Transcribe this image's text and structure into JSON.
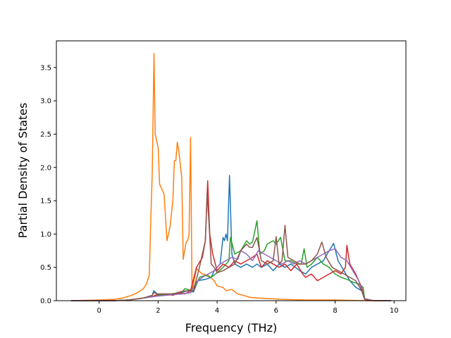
{
  "chart_data": {
    "type": "line",
    "title": "",
    "xlabel": "Frequency (THz)",
    "ylabel": "Partial Density of States",
    "xlim": [
      -1.45,
      10.4
    ],
    "ylim": [
      0,
      3.9
    ],
    "xticks": [
      0,
      2,
      4,
      6,
      8,
      10
    ],
    "yticks": [
      0.0,
      0.5,
      1.0,
      1.5,
      2.0,
      2.5,
      3.0,
      3.5
    ],
    "xtick_labels": [
      "0",
      "2",
      "4",
      "6",
      "8",
      "10"
    ],
    "ytick_labels": [
      "0.0",
      "0.5",
      "1.0",
      "1.5",
      "2.0",
      "2.5",
      "3.0",
      "3.5"
    ],
    "grid": false,
    "legend": "none",
    "series": [
      {
        "color": "#1f77b4",
        "points": [
          [
            -0.95,
            0
          ],
          [
            0.5,
            0
          ],
          [
            1.0,
            0.01
          ],
          [
            1.5,
            0.04
          ],
          [
            1.8,
            0.08
          ],
          [
            1.85,
            0.15
          ],
          [
            2.0,
            0.09
          ],
          [
            2.4,
            0.1
          ],
          [
            2.8,
            0.12
          ],
          [
            3.0,
            0.15
          ],
          [
            3.2,
            0.13
          ],
          [
            3.35,
            0.3
          ],
          [
            3.6,
            0.32
          ],
          [
            3.8,
            0.35
          ],
          [
            3.9,
            0.45
          ],
          [
            4.0,
            0.5
          ],
          [
            4.1,
            0.55
          ],
          [
            4.15,
            0.75
          ],
          [
            4.2,
            0.95
          ],
          [
            4.25,
            0.9
          ],
          [
            4.3,
            1.0
          ],
          [
            4.35,
            0.9
          ],
          [
            4.42,
            1.88
          ],
          [
            4.5,
            0.7
          ],
          [
            4.6,
            0.55
          ],
          [
            4.8,
            0.5
          ],
          [
            5.0,
            0.55
          ],
          [
            5.2,
            0.5
          ],
          [
            5.35,
            0.55
          ],
          [
            5.5,
            0.5
          ],
          [
            5.7,
            0.55
          ],
          [
            5.9,
            0.45
          ],
          [
            6.1,
            0.55
          ],
          [
            6.3,
            0.5
          ],
          [
            6.5,
            0.55
          ],
          [
            6.8,
            0.45
          ],
          [
            7.0,
            0.4
          ],
          [
            7.2,
            0.5
          ],
          [
            7.4,
            0.55
          ],
          [
            7.6,
            0.6
          ],
          [
            7.8,
            0.75
          ],
          [
            7.95,
            0.86
          ],
          [
            8.1,
            0.6
          ],
          [
            8.3,
            0.45
          ],
          [
            8.5,
            0.3
          ],
          [
            8.7,
            0.2
          ],
          [
            8.9,
            0.15
          ],
          [
            9.0,
            0.02
          ],
          [
            9.3,
            0
          ],
          [
            9.9,
            0
          ]
        ]
      },
      {
        "color": "#ff7f0e",
        "points": [
          [
            -0.95,
            0
          ],
          [
            0.0,
            0.01
          ],
          [
            0.5,
            0.02
          ],
          [
            0.8,
            0.04
          ],
          [
            1.1,
            0.08
          ],
          [
            1.3,
            0.12
          ],
          [
            1.5,
            0.18
          ],
          [
            1.6,
            0.25
          ],
          [
            1.7,
            0.38
          ],
          [
            1.75,
            1.2
          ],
          [
            1.8,
            1.9
          ],
          [
            1.86,
            3.71
          ],
          [
            1.9,
            2.5
          ],
          [
            2.0,
            2.3
          ],
          [
            2.05,
            1.75
          ],
          [
            2.15,
            1.65
          ],
          [
            2.2,
            1.6
          ],
          [
            2.3,
            0.9
          ],
          [
            2.4,
            1.1
          ],
          [
            2.5,
            1.5
          ],
          [
            2.55,
            2.1
          ],
          [
            2.6,
            2.1
          ],
          [
            2.65,
            2.38
          ],
          [
            2.7,
            2.25
          ],
          [
            2.8,
            1.85
          ],
          [
            2.85,
            0.62
          ],
          [
            2.95,
            0.88
          ],
          [
            3.0,
            0.9
          ],
          [
            3.05,
            1.0
          ],
          [
            3.1,
            2.45
          ],
          [
            3.15,
            0.15
          ],
          [
            3.3,
            0.48
          ],
          [
            3.5,
            0.4
          ],
          [
            3.7,
            0.38
          ],
          [
            3.9,
            0.3
          ],
          [
            4.0,
            0.22
          ],
          [
            4.2,
            0.2
          ],
          [
            4.3,
            0.15
          ],
          [
            4.5,
            0.17
          ],
          [
            4.7,
            0.1
          ],
          [
            4.9,
            0.08
          ],
          [
            5.1,
            0.05
          ],
          [
            5.4,
            0.04
          ],
          [
            5.8,
            0.03
          ],
          [
            6.2,
            0.02
          ],
          [
            7.0,
            0.01
          ],
          [
            8.0,
            0.01
          ],
          [
            9.0,
            0
          ],
          [
            9.9,
            0
          ]
        ]
      },
      {
        "color": "#2ca02c",
        "points": [
          [
            -0.95,
            0
          ],
          [
            0.5,
            0
          ],
          [
            1.0,
            0.01
          ],
          [
            1.5,
            0.04
          ],
          [
            2.0,
            0.08
          ],
          [
            2.4,
            0.1
          ],
          [
            2.8,
            0.12
          ],
          [
            2.9,
            0.18
          ],
          [
            3.2,
            0.15
          ],
          [
            3.4,
            0.35
          ],
          [
            3.6,
            0.38
          ],
          [
            3.8,
            0.35
          ],
          [
            4.0,
            0.42
          ],
          [
            4.2,
            0.5
          ],
          [
            4.4,
            0.6
          ],
          [
            4.45,
            0.95
          ],
          [
            4.6,
            0.7
          ],
          [
            4.8,
            0.75
          ],
          [
            5.0,
            0.9
          ],
          [
            5.1,
            0.85
          ],
          [
            5.2,
            0.88
          ],
          [
            5.35,
            1.2
          ],
          [
            5.45,
            0.7
          ],
          [
            5.6,
            0.75
          ],
          [
            5.7,
            0.85
          ],
          [
            5.9,
            0.9
          ],
          [
            6.0,
            0.85
          ],
          [
            6.15,
            0.95
          ],
          [
            6.3,
            0.6
          ],
          [
            6.5,
            0.6
          ],
          [
            6.7,
            0.55
          ],
          [
            6.85,
            0.55
          ],
          [
            6.95,
            0.78
          ],
          [
            7.05,
            0.5
          ],
          [
            7.2,
            0.55
          ],
          [
            7.4,
            0.65
          ],
          [
            7.6,
            0.55
          ],
          [
            7.8,
            0.5
          ],
          [
            8.0,
            0.4
          ],
          [
            8.2,
            0.35
          ],
          [
            8.4,
            0.32
          ],
          [
            8.6,
            0.28
          ],
          [
            8.8,
            0.25
          ],
          [
            8.95,
            0.2
          ],
          [
            9.0,
            0.03
          ],
          [
            9.3,
            0
          ],
          [
            9.9,
            0
          ]
        ]
      },
      {
        "color": "#d62728",
        "points": [
          [
            -0.95,
            0
          ],
          [
            0.5,
            0
          ],
          [
            1.0,
            0.01
          ],
          [
            1.5,
            0.04
          ],
          [
            1.8,
            0.06
          ],
          [
            2.0,
            0.1
          ],
          [
            2.3,
            0.1
          ],
          [
            2.5,
            0.08
          ],
          [
            2.7,
            0.12
          ],
          [
            2.9,
            0.1
          ],
          [
            3.1,
            0.15
          ],
          [
            3.3,
            0.5
          ],
          [
            3.5,
            0.65
          ],
          [
            3.6,
            0.9
          ],
          [
            3.68,
            1.8
          ],
          [
            3.75,
            1.0
          ],
          [
            3.85,
            0.7
          ],
          [
            4.0,
            0.45
          ],
          [
            4.2,
            0.55
          ],
          [
            4.4,
            0.5
          ],
          [
            4.6,
            0.6
          ],
          [
            4.8,
            0.55
          ],
          [
            5.0,
            0.6
          ],
          [
            5.2,
            0.65
          ],
          [
            5.35,
            0.7
          ],
          [
            5.5,
            0.5
          ],
          [
            5.7,
            0.6
          ],
          [
            5.9,
            0.55
          ],
          [
            6.1,
            0.5
          ],
          [
            6.3,
            0.55
          ],
          [
            6.5,
            0.45
          ],
          [
            6.7,
            0.55
          ],
          [
            6.9,
            0.4
          ],
          [
            7.0,
            0.35
          ],
          [
            7.2,
            0.4
          ],
          [
            7.4,
            0.3
          ],
          [
            7.6,
            0.35
          ],
          [
            7.8,
            0.4
          ],
          [
            8.0,
            0.45
          ],
          [
            8.2,
            0.4
          ],
          [
            8.35,
            0.5
          ],
          [
            8.4,
            0.83
          ],
          [
            8.5,
            0.55
          ],
          [
            8.7,
            0.4
          ],
          [
            8.9,
            0.2
          ],
          [
            9.0,
            0.02
          ],
          [
            9.3,
            0
          ],
          [
            9.9,
            0
          ]
        ]
      },
      {
        "color": "#9467bd",
        "points": [
          [
            -0.95,
            0
          ],
          [
            0.5,
            0
          ],
          [
            1.0,
            0.01
          ],
          [
            1.5,
            0.04
          ],
          [
            2.0,
            0.07
          ],
          [
            2.5,
            0.09
          ],
          [
            2.8,
            0.1
          ],
          [
            3.1,
            0.12
          ],
          [
            3.3,
            0.28
          ],
          [
            3.5,
            0.35
          ],
          [
            3.7,
            0.4
          ],
          [
            3.9,
            0.45
          ],
          [
            4.1,
            0.55
          ],
          [
            4.3,
            0.6
          ],
          [
            4.5,
            0.65
          ],
          [
            4.7,
            0.62
          ],
          [
            4.8,
            0.75
          ],
          [
            5.0,
            0.7
          ],
          [
            5.2,
            0.6
          ],
          [
            5.4,
            0.75
          ],
          [
            5.6,
            0.7
          ],
          [
            5.8,
            0.65
          ],
          [
            6.0,
            0.6
          ],
          [
            6.2,
            0.55
          ],
          [
            6.4,
            0.6
          ],
          [
            6.6,
            0.55
          ],
          [
            6.8,
            0.6
          ],
          [
            7.0,
            0.55
          ],
          [
            7.2,
            0.6
          ],
          [
            7.4,
            0.65
          ],
          [
            7.6,
            0.7
          ],
          [
            7.8,
            0.75
          ],
          [
            8.0,
            0.78
          ],
          [
            8.2,
            0.65
          ],
          [
            8.4,
            0.6
          ],
          [
            8.6,
            0.45
          ],
          [
            8.8,
            0.3
          ],
          [
            9.0,
            0.03
          ],
          [
            9.3,
            0
          ],
          [
            9.9,
            0
          ]
        ]
      },
      {
        "color": "#8c564b",
        "points": [
          [
            -0.95,
            0
          ],
          [
            0.5,
            0
          ],
          [
            1.0,
            0.01
          ],
          [
            1.5,
            0.04
          ],
          [
            1.8,
            0.08
          ],
          [
            1.85,
            0.12
          ],
          [
            2.0,
            0.1
          ],
          [
            2.5,
            0.1
          ],
          [
            2.8,
            0.14
          ],
          [
            3.0,
            0.15
          ],
          [
            3.2,
            0.15
          ],
          [
            3.4,
            0.5
          ],
          [
            3.5,
            0.7
          ],
          [
            3.6,
            0.9
          ],
          [
            3.66,
            1.6
          ],
          [
            3.72,
            1.2
          ],
          [
            3.8,
            0.55
          ],
          [
            3.9,
            0.5
          ],
          [
            4.0,
            0.42
          ],
          [
            4.2,
            0.45
          ],
          [
            4.4,
            0.5
          ],
          [
            4.6,
            0.55
          ],
          [
            4.8,
            0.75
          ],
          [
            5.0,
            0.85
          ],
          [
            5.1,
            0.8
          ],
          [
            5.2,
            0.8
          ],
          [
            5.35,
            0.95
          ],
          [
            5.5,
            0.6
          ],
          [
            5.7,
            0.55
          ],
          [
            5.9,
            0.6
          ],
          [
            6.0,
            0.96
          ],
          [
            6.1,
            0.55
          ],
          [
            6.2,
            0.6
          ],
          [
            6.3,
            1.13
          ],
          [
            6.4,
            0.65
          ],
          [
            6.6,
            0.6
          ],
          [
            6.8,
            0.55
          ],
          [
            7.0,
            0.55
          ],
          [
            7.2,
            0.6
          ],
          [
            7.4,
            0.7
          ],
          [
            7.55,
            0.88
          ],
          [
            7.7,
            0.65
          ],
          [
            7.9,
            0.5
          ],
          [
            8.1,
            0.45
          ],
          [
            8.3,
            0.4
          ],
          [
            8.5,
            0.35
          ],
          [
            8.7,
            0.3
          ],
          [
            8.9,
            0.15
          ],
          [
            9.0,
            0.02
          ],
          [
            9.3,
            0
          ],
          [
            9.9,
            0
          ]
        ]
      }
    ]
  }
}
